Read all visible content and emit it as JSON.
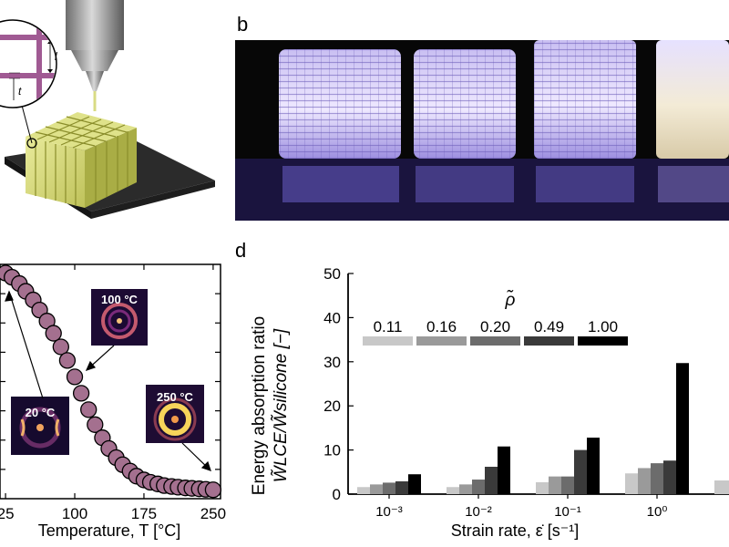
{
  "panels": {
    "b_label": "b",
    "d_label": "d"
  },
  "panel_a": {
    "dim_l": "l",
    "dim_t": "t"
  },
  "panel_c": {
    "x_axis_label": "Temperature, T [°C]",
    "x_ticks": [
      "25",
      "100",
      "175",
      "250"
    ],
    "insets": [
      "20 °C",
      "100 °C",
      "250 °C"
    ],
    "marker_color": "#a4708f"
  },
  "chart_data": [
    {
      "type": "scatter",
      "xlabel": "Temperature, T [°C]",
      "xlim": [
        19,
        258
      ],
      "ylim": [
        0,
        1
      ],
      "x_ticks": [
        25,
        100,
        175,
        250
      ],
      "points": [
        {
          "x": 25,
          "y": 0.963
        },
        {
          "x": 32,
          "y": 0.945
        },
        {
          "x": 40,
          "y": 0.918
        },
        {
          "x": 47,
          "y": 0.885
        },
        {
          "x": 55,
          "y": 0.848
        },
        {
          "x": 62,
          "y": 0.805
        },
        {
          "x": 70,
          "y": 0.758
        },
        {
          "x": 77,
          "y": 0.706
        },
        {
          "x": 85,
          "y": 0.648
        },
        {
          "x": 92,
          "y": 0.59
        },
        {
          "x": 100,
          "y": 0.52
        },
        {
          "x": 107,
          "y": 0.45
        },
        {
          "x": 115,
          "y": 0.38
        },
        {
          "x": 122,
          "y": 0.316
        },
        {
          "x": 130,
          "y": 0.26
        },
        {
          "x": 137,
          "y": 0.214
        },
        {
          "x": 145,
          "y": 0.175
        },
        {
          "x": 152,
          "y": 0.145
        },
        {
          "x": 160,
          "y": 0.118
        },
        {
          "x": 167,
          "y": 0.096
        },
        {
          "x": 175,
          "y": 0.08
        },
        {
          "x": 182,
          "y": 0.07
        },
        {
          "x": 190,
          "y": 0.063
        },
        {
          "x": 197,
          "y": 0.056
        },
        {
          "x": 205,
          "y": 0.052
        },
        {
          "x": 212,
          "y": 0.049
        },
        {
          "x": 220,
          "y": 0.046
        },
        {
          "x": 227,
          "y": 0.044
        },
        {
          "x": 235,
          "y": 0.042
        },
        {
          "x": 242,
          "y": 0.04
        },
        {
          "x": 250,
          "y": 0.038
        }
      ]
    },
    {
      "type": "bar",
      "ylabel_line1": "Energy absorption ratio",
      "ylabel_line2": "W̃LCE/W̃silicone [−]",
      "xlabel": "Strain rate, ε̇ [s⁻¹]",
      "ylim": [
        0,
        50
      ],
      "y_ticks": [
        "0",
        "10",
        "20",
        "30",
        "40",
        "50"
      ],
      "categories": [
        "10⁻³",
        "10⁻²",
        "10⁻¹",
        "10⁰"
      ],
      "legend_title": "ρ̃",
      "legend_placement": "top",
      "series": [
        {
          "name": "0.11",
          "color": "#c8c8c8",
          "values": [
            1.6,
            1.6,
            2.7,
            4.7
          ]
        },
        {
          "name": "0.16",
          "color": "#9a9a9a",
          "values": [
            2.2,
            2.2,
            4.0,
            5.9
          ]
        },
        {
          "name": "0.20",
          "color": "#6c6c6c",
          "values": [
            2.6,
            3.3,
            4.0,
            7.0
          ]
        },
        {
          "name": "0.49",
          "color": "#3a3a3a",
          "values": [
            2.9,
            6.2,
            10.0,
            7.6
          ]
        },
        {
          "name": "1.00",
          "color": "#000000",
          "values": [
            4.5,
            10.8,
            12.8,
            29.7
          ]
        }
      ],
      "partial_next_category_first_value": 3.1
    }
  ]
}
